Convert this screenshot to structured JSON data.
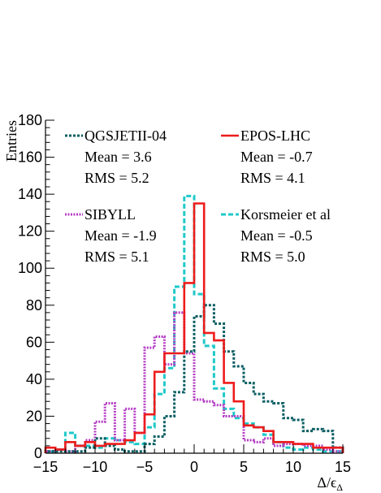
{
  "chart_data": {
    "type": "step-histogram",
    "xlabel": "Δ/ϵΔ",
    "xlabel_main": "Δ/ϵ",
    "xlabel_sub": "Δ",
    "ylabel": "Entries",
    "xlim": [
      -15,
      15
    ],
    "ylim": [
      0,
      180
    ],
    "x_ticks": [
      -15,
      -10,
      -5,
      0,
      5,
      10,
      15
    ],
    "y_ticks": [
      0,
      20,
      40,
      60,
      80,
      100,
      120,
      140,
      160,
      180
    ],
    "bin_edges": [
      -15,
      -14,
      -13,
      -12,
      -11,
      -10,
      -9,
      -8,
      -7,
      -6,
      -5,
      -4,
      -3,
      -2,
      -1,
      0,
      1,
      2,
      3,
      4,
      5,
      6,
      7,
      8,
      9,
      10,
      11,
      12,
      13,
      14,
      15
    ],
    "series": [
      {
        "name": "QGSJETII-04",
        "mean_label": "Mean = 3.6",
        "rms_label": "RMS = 5.2",
        "color": "#0b5f63",
        "style": "dotted",
        "values": [
          1,
          1,
          1,
          1,
          3,
          8,
          4,
          2,
          1,
          1,
          5,
          9,
          20,
          33,
          55,
          74,
          80,
          70,
          55,
          47,
          38,
          32,
          28,
          27,
          19,
          18,
          12,
          13,
          12,
          3
        ]
      },
      {
        "name": "EPOS-LHC",
        "mean_label": "Mean = -0.7",
        "rms_label": "RMS = 4.1",
        "color": "#ee1c1c",
        "style": "solid",
        "values": [
          3,
          2,
          6,
          4,
          6,
          4,
          5,
          5,
          7,
          11,
          21,
          44,
          54,
          54,
          92,
          135,
          65,
          61,
          38,
          28,
          15,
          14,
          12,
          6,
          6,
          5,
          5,
          3,
          3,
          3
        ]
      },
      {
        "name": "SIBYLL",
        "mean_label": "Mean = -1.9",
        "rms_label": "RMS = 5.1",
        "color": "#b43cc3",
        "style": "dotted-dense",
        "values": [
          1,
          2,
          1,
          4,
          7,
          17,
          27,
          7,
          24,
          11,
          57,
          63,
          48,
          76,
          54,
          29,
          28,
          26,
          20,
          20,
          7,
          6,
          8,
          4,
          5,
          5,
          4,
          4,
          2,
          1
        ]
      },
      {
        "name": "Korsmeier et al",
        "mean_label": "Mean = -0.5",
        "rms_label": "RMS = 5.0",
        "color": "#1fc9c9",
        "style": "dashed",
        "values": [
          1,
          2,
          11,
          4,
          4,
          3,
          8,
          7,
          6,
          5,
          14,
          32,
          46,
          90,
          139,
          86,
          58,
          35,
          24,
          19,
          16,
          14,
          10,
          6,
          3,
          2,
          3,
          2,
          1,
          1
        ]
      }
    ],
    "legend": {
      "placement": "top",
      "columns": 2
    }
  }
}
